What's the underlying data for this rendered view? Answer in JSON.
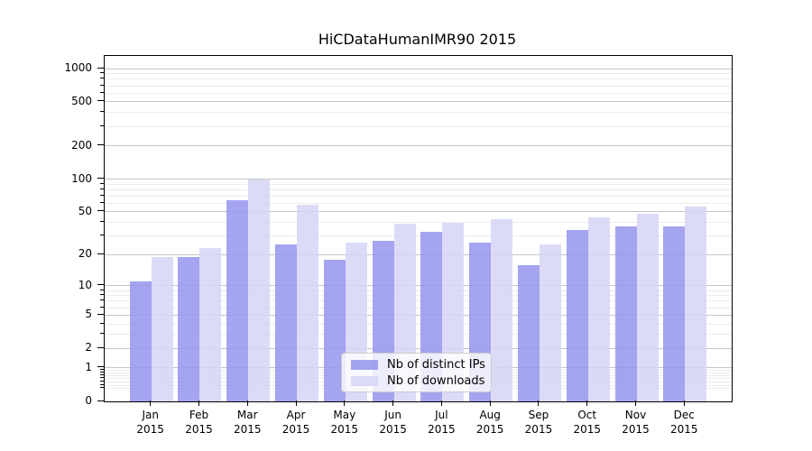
{
  "chart_data": {
    "type": "bar",
    "title": "HiCDataHumanIMR90 2015",
    "categories": [
      "Jan\n2015",
      "Feb\n2015",
      "Mar\n2015",
      "Apr\n2015",
      "May\n2015",
      "Jun\n2015",
      "Jul\n2015",
      "Aug\n2015",
      "Sep\n2015",
      "Oct\n2015",
      "Nov\n2015",
      "Dec\n2015"
    ],
    "series": [
      {
        "name": "Nb of distinct IPs",
        "color": "#9494ed",
        "values": [
          11,
          19,
          64,
          25,
          18,
          27,
          33,
          26,
          16,
          34,
          37,
          37
        ]
      },
      {
        "name": "Nb of downloads",
        "color": "#d5d5f7",
        "values": [
          19,
          23,
          100,
          58,
          26,
          39,
          40,
          43,
          25,
          45,
          48,
          56
        ]
      }
    ],
    "yscale": "log1p",
    "ylim": [
      0,
      1300
    ],
    "y_major_ticks": [
      0,
      1,
      2,
      5,
      10,
      20,
      50,
      100,
      200,
      500,
      1000
    ],
    "y_minor_ticks": [
      0.3,
      0.4,
      0.5,
      0.6,
      0.7,
      0.8,
      0.9,
      3,
      4,
      6,
      7,
      8,
      9,
      30,
      40,
      60,
      70,
      80,
      90,
      300,
      400,
      600,
      700,
      800,
      900
    ],
    "grid": true,
    "grid_major_color": "#c6c6c6",
    "grid_minor_color": "#ececec",
    "legend_position": "lower center",
    "bar_opacity": 0.85
  }
}
